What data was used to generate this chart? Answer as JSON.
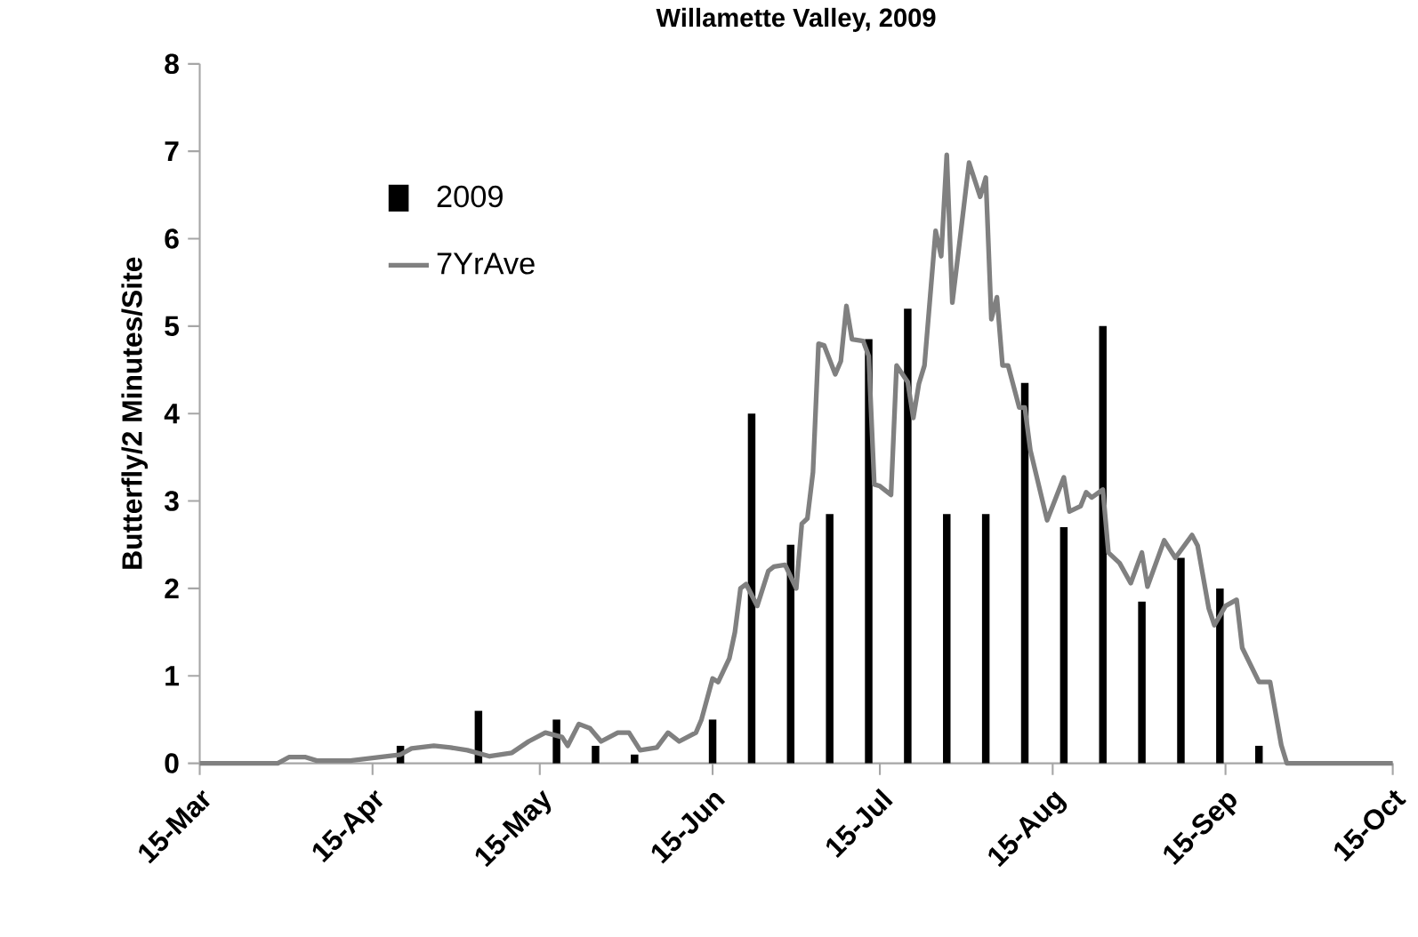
{
  "chart_data": {
    "type": "bar",
    "title": "Willamette Valley, 2009",
    "ylabel": "Butterfly/2 Minutes/Site",
    "xlim": [
      "2009-03-15",
      "2009-10-15"
    ],
    "xticks": [
      {
        "value": "2009-03-15",
        "label": "15-Mar"
      },
      {
        "value": "2009-04-15",
        "label": "15-Apr"
      },
      {
        "value": "2009-05-15",
        "label": "15-May"
      },
      {
        "value": "2009-06-15",
        "label": "15-Jun"
      },
      {
        "value": "2009-07-15",
        "label": "15-Jul"
      },
      {
        "value": "2009-08-15",
        "label": "15-Aug"
      },
      {
        "value": "2009-09-15",
        "label": "15-Sep"
      },
      {
        "value": "2009-10-15",
        "label": "15-Oct"
      }
    ],
    "ylim": [
      0,
      8
    ],
    "yticks": [
      0,
      1,
      2,
      3,
      4,
      5,
      6,
      7,
      8
    ],
    "legend": "top left",
    "grid": false,
    "series": [
      {
        "name": "2009",
        "color": "#000000",
        "x": [
          "2009-04-20",
          "2009-05-04",
          "2009-05-18",
          "2009-05-25",
          "2009-06-01",
          "2009-06-15",
          "2009-06-22",
          "2009-06-29",
          "2009-07-06",
          "2009-07-13",
          "2009-07-20",
          "2009-07-27",
          "2009-08-03",
          "2009-08-10",
          "2009-08-17",
          "2009-08-24",
          "2009-08-31",
          "2009-09-07",
          "2009-09-14",
          "2009-09-21"
        ],
        "values": [
          0.2,
          0.6,
          0.5,
          0.2,
          0.1,
          0.5,
          4.0,
          2.5,
          2.85,
          4.85,
          5.2,
          2.85,
          2.85,
          4.35,
          2.7,
          5.0,
          1.85,
          2.35,
          2.0,
          0.2
        ]
      },
      {
        "name": "7YrAve",
        "type": "line",
        "color": "#808080",
        "marker": "none",
        "line_style": "solid",
        "x": [
          "2009-03-15",
          "2009-03-29",
          "2009-03-31",
          "2009-04-03",
          "2009-04-05",
          "2009-04-11",
          "2009-04-15",
          "2009-04-20",
          "2009-04-22",
          "2009-04-26",
          "2009-04-29",
          "2009-05-02",
          "2009-05-06",
          "2009-05-10",
          "2009-05-13",
          "2009-05-16",
          "2009-05-19",
          "2009-05-20",
          "2009-05-22",
          "2009-05-24",
          "2009-05-26",
          "2009-05-29",
          "2009-05-31",
          "2009-06-02",
          "2009-06-05",
          "2009-06-07",
          "2009-06-09",
          "2009-06-12",
          "2009-06-13",
          "2009-06-15",
          "2009-06-16",
          "2009-06-18",
          "2009-06-19",
          "2009-06-20",
          "2009-06-21",
          "2009-06-23",
          "2009-06-25",
          "2009-06-26",
          "2009-06-28",
          "2009-06-30",
          "2009-07-01",
          "2009-07-02",
          "2009-07-03",
          "2009-07-04",
          "2009-07-05",
          "2009-07-07",
          "2009-07-08",
          "2009-07-09",
          "2009-07-10",
          "2009-07-12",
          "2009-07-13",
          "2009-07-14",
          "2009-07-15",
          "2009-07-17",
          "2009-07-18",
          "2009-07-20",
          "2009-07-21",
          "2009-07-22",
          "2009-07-23",
          "2009-07-25",
          "2009-07-26",
          "2009-07-27",
          "2009-07-28",
          "2009-07-29",
          "2009-07-31",
          "2009-08-02",
          "2009-08-03",
          "2009-08-04",
          "2009-08-05",
          "2009-08-06",
          "2009-08-07",
          "2009-08-09",
          "2009-08-10",
          "2009-08-11",
          "2009-08-14",
          "2009-08-17",
          "2009-08-18",
          "2009-08-20",
          "2009-08-21",
          "2009-08-22",
          "2009-08-24",
          "2009-08-25",
          "2009-08-27",
          "2009-08-29",
          "2009-08-31",
          "2009-09-01",
          "2009-09-04",
          "2009-09-06",
          "2009-09-09",
          "2009-09-10",
          "2009-09-12",
          "2009-09-13",
          "2009-09-15",
          "2009-09-17",
          "2009-09-18",
          "2009-09-21",
          "2009-09-23",
          "2009-09-25",
          "2009-09-26",
          "2009-10-15"
        ],
        "values": [
          0,
          0,
          0.07,
          0.07,
          0.03,
          0.03,
          0.06,
          0.1,
          0.17,
          0.2,
          0.18,
          0.15,
          0.08,
          0.12,
          0.25,
          0.35,
          0.3,
          0.2,
          0.45,
          0.4,
          0.25,
          0.35,
          0.35,
          0.15,
          0.18,
          0.35,
          0.25,
          0.35,
          0.5,
          0.97,
          0.93,
          1.2,
          1.5,
          2.0,
          2.05,
          1.8,
          2.2,
          2.25,
          2.27,
          2.0,
          2.74,
          2.8,
          3.33,
          4.8,
          4.78,
          4.45,
          4.6,
          5.23,
          4.85,
          4.83,
          4.66,
          3.19,
          3.17,
          3.07,
          4.55,
          4.36,
          3.95,
          4.34,
          4.55,
          6.09,
          5.8,
          6.96,
          5.27,
          5.8,
          6.87,
          6.48,
          6.7,
          5.08,
          5.33,
          4.55,
          4.55,
          4.07,
          4.07,
          3.58,
          2.78,
          3.27,
          2.88,
          2.94,
          3.1,
          3.04,
          3.13,
          2.41,
          2.29,
          2.06,
          2.41,
          2.02,
          2.55,
          2.35,
          2.61,
          2.49,
          1.77,
          1.58,
          1.8,
          1.87,
          1.32,
          0.93,
          0.93,
          0.21,
          0,
          0
        ]
      }
    ]
  }
}
